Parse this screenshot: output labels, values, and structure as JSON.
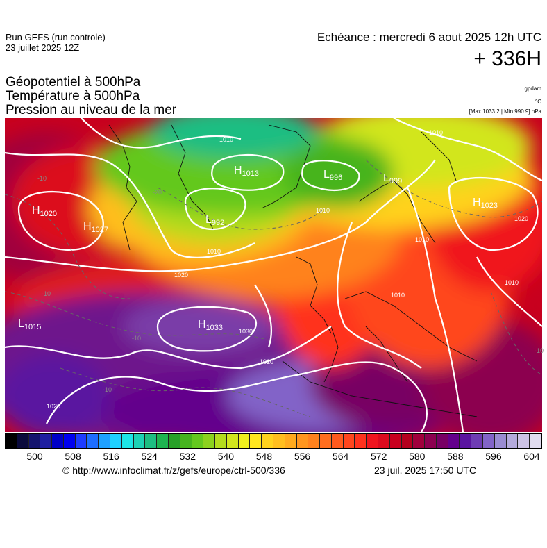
{
  "header": {
    "run": "Run GEFS (run controle)",
    "run_date": "23 juillet 2025 12Z",
    "echeance": "Echéance : mercredi 6 aout 2025 12h UTC",
    "lead": "+ 336H",
    "title_lines": [
      "Géopotentiel à 500hPa",
      "Température à 500hPa",
      "Pression au niveau de la mer"
    ],
    "unit_geo": "gpdam",
    "unit_temp": "°C",
    "minmax": "[Max 1033.2 | Min 990.9] hPa"
  },
  "pressure_centers": [
    {
      "type": "H",
      "value": "1020"
    },
    {
      "type": "H",
      "value": "1027"
    },
    {
      "type": "L",
      "value": "992"
    },
    {
      "type": "H",
      "value": "1013"
    },
    {
      "type": "L",
      "value": "996"
    },
    {
      "type": "L",
      "value": "999"
    },
    {
      "type": "H",
      "value": "1023"
    },
    {
      "type": "L",
      "value": "1015"
    },
    {
      "type": "H",
      "value": "1033"
    }
  ],
  "isobar_labels": [
    "1010",
    "1010",
    "1010",
    "1010",
    "1020",
    "1020",
    "1030",
    "1020",
    "1020",
    "1010",
    "1010",
    "1010"
  ],
  "temp_labels": [
    "-10",
    "-20",
    "-10",
    "-10",
    "-10",
    "-10"
  ],
  "colorbar": {
    "ticks": [
      "500",
      "508",
      "516",
      "524",
      "532",
      "540",
      "548",
      "556",
      "564",
      "572",
      "580",
      "588",
      "596",
      "604"
    ],
    "colors": [
      "#000000",
      "#0a0a3c",
      "#14146e",
      "#1e1ea0",
      "#0000c8",
      "#0000f0",
      "#1e3cff",
      "#1e6eff",
      "#1ea0ff",
      "#1ed2ff",
      "#1ee6e6",
      "#1ed2b4",
      "#1ebe82",
      "#1eb450",
      "#28a028",
      "#46b41e",
      "#64c81e",
      "#8cd21e",
      "#b4dc1e",
      "#d2e61e",
      "#f0f01e",
      "#ffe61e",
      "#ffd21e",
      "#ffbe1e",
      "#ffaa1e",
      "#ff961e",
      "#ff821e",
      "#ff6e1e",
      "#ff5a1e",
      "#ff461e",
      "#ff321e",
      "#f0141e",
      "#dc0a1e",
      "#c8001e",
      "#b4001e",
      "#a0003c",
      "#8c0050",
      "#780064",
      "#64008c",
      "#5a14a0",
      "#6e3cb4",
      "#8264c8",
      "#9a8cd2",
      "#b4aadc",
      "#cdc3e6",
      "#e1dcf0"
    ]
  },
  "footer": {
    "url": "© http://www.infoclimat.fr/z/gefs/europe/ctrl-500/336",
    "timestamp": "23 juil. 2025 17:50 UTC"
  }
}
